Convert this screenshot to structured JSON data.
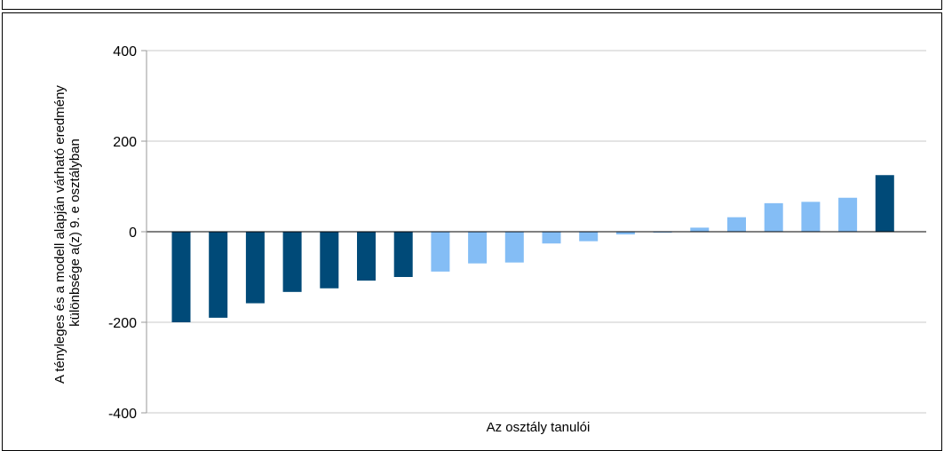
{
  "chart_data": {
    "type": "bar",
    "title": "",
    "xlabel": "Az osztály tanulói",
    "ylabel_lines": [
      "A tényleges és a modell alapján várható eredmény",
      "különbsége a(z) 9. e osztályban"
    ],
    "ylim": [
      -400,
      400
    ],
    "yticks": [
      400,
      200,
      0,
      -200,
      -400
    ],
    "ytick_labels": [
      "400",
      "200",
      "0",
      "-200",
      "-400"
    ],
    "grid": true,
    "legend": "none",
    "colors": {
      "dark": "#004a78",
      "light": "#84bdf5",
      "grid": "#c8c8c8"
    },
    "values": [
      -200,
      -190,
      -158,
      -133,
      -125,
      -108,
      -100,
      -88,
      -70,
      -68,
      -26,
      -21,
      -6,
      -2,
      9,
      32,
      63,
      66,
      75,
      125
    ],
    "bar_colors": [
      "dark",
      "dark",
      "dark",
      "dark",
      "dark",
      "dark",
      "dark",
      "light",
      "light",
      "light",
      "light",
      "light",
      "light",
      "light",
      "light",
      "light",
      "light",
      "light",
      "light",
      "dark"
    ]
  }
}
